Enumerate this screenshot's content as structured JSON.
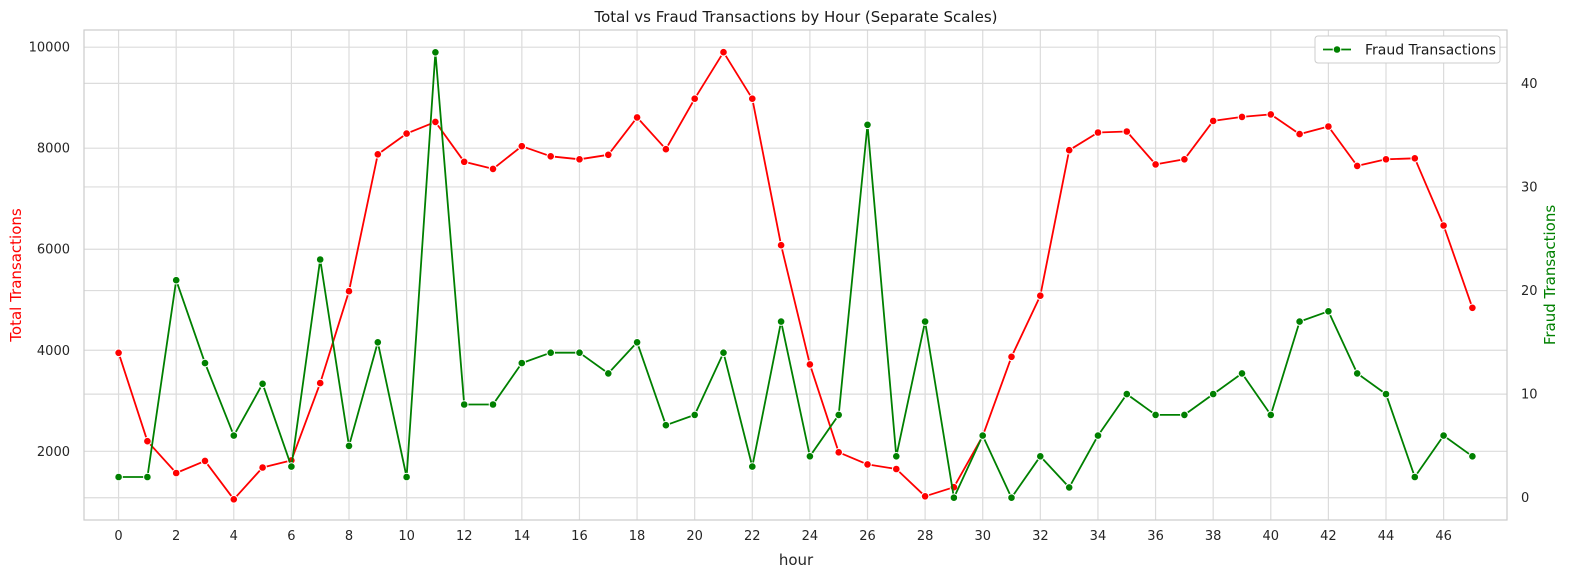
{
  "chart_data": {
    "type": "line",
    "title": "Total vs Fraud Transactions by Hour (Separate Scales)",
    "xlabel": "hour",
    "ylabel_left": "Total Transactions",
    "ylabel_right": "Fraud Transactions",
    "x_ticks": [
      0,
      2,
      4,
      6,
      8,
      10,
      12,
      14,
      16,
      18,
      20,
      22,
      24,
      26,
      28,
      30,
      32,
      34,
      36,
      38,
      40,
      42,
      44,
      46
    ],
    "y_left_ticks": [
      2000,
      4000,
      6000,
      8000,
      10000
    ],
    "y_right_ticks": [
      0,
      10,
      20,
      30,
      40
    ],
    "xlim": [
      -1.2,
      48.2
    ],
    "ylim_left": [
      640,
      10340
    ],
    "ylim_right": [
      -2.15,
      45.15
    ],
    "grid": true,
    "legend": {
      "position": "top-right",
      "entries": [
        "Fraud Transactions"
      ]
    },
    "x": [
      0,
      1,
      2,
      3,
      4,
      5,
      6,
      7,
      8,
      9,
      10,
      11,
      12,
      13,
      14,
      15,
      16,
      17,
      18,
      19,
      20,
      21,
      22,
      23,
      24,
      25,
      26,
      27,
      28,
      29,
      30,
      31,
      32,
      33,
      34,
      35,
      36,
      37,
      38,
      39,
      40,
      41,
      42,
      43,
      44,
      45,
      46,
      47
    ],
    "series": [
      {
        "name": "Total Transactions",
        "axis": "left",
        "color": "#ff0000",
        "values": [
          3950,
          2200,
          1570,
          1810,
          1050,
          1680,
          1820,
          3350,
          5170,
          7880,
          8290,
          8520,
          7730,
          7590,
          8040,
          7840,
          7780,
          7870,
          8610,
          7980,
          8980,
          9900,
          8980,
          6080,
          3720,
          1980,
          1740,
          1650,
          1110,
          1290,
          2300,
          3870,
          5080,
          7960,
          8310,
          8330,
          7680,
          7780,
          8540,
          8620,
          8670,
          8280,
          8430,
          7650,
          7780,
          7800,
          6470,
          4840
        ]
      },
      {
        "name": "Fraud Transactions",
        "axis": "right",
        "color": "#008000",
        "values": [
          2,
          2,
          21,
          13,
          6,
          11,
          3,
          23,
          5,
          15,
          2,
          43,
          9,
          9,
          13,
          14,
          14,
          12,
          15,
          7,
          8,
          14,
          3,
          17,
          4,
          8,
          36,
          4,
          17,
          0,
          6,
          0,
          4,
          1,
          6,
          10,
          8,
          8,
          10,
          12,
          8,
          17,
          18,
          12,
          10,
          2,
          6,
          4
        ]
      }
    ]
  }
}
